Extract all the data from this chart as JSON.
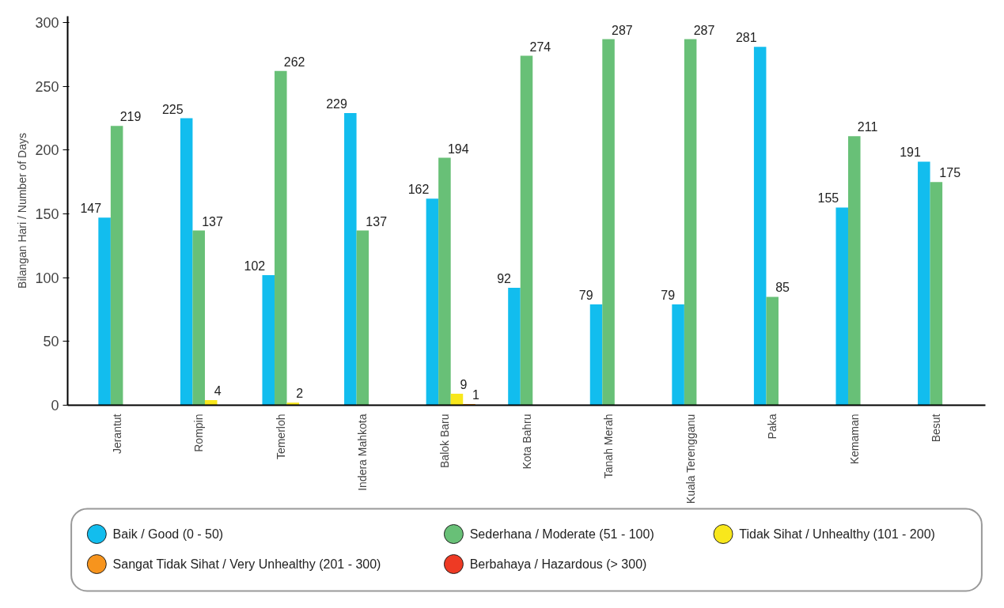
{
  "chart_data": {
    "type": "bar",
    "ylabel": "Bilangan Hari / Number of Days",
    "categories": [
      "Jerantut",
      "Rompin",
      "Temerloh",
      "Indera Mahkota",
      "Balok Baru",
      "Kota Bahru",
      "Tanah Merah",
      "Kuala Terengganu",
      "Paka",
      "Kemaman",
      "Besut"
    ],
    "series": [
      {
        "name": "Baik / Good (0 - 50)",
        "color": "#12bdee",
        "values": [
          147,
          225,
          102,
          229,
          162,
          92,
          79,
          79,
          281,
          155,
          191
        ]
      },
      {
        "name": "Sederhana / Moderate (51 - 100)",
        "color": "#68c077",
        "values": [
          219,
          137,
          262,
          137,
          194,
          274,
          287,
          287,
          85,
          211,
          175
        ]
      },
      {
        "name": "Tidak Sihat / Unhealthy (101 - 200)",
        "color": "#f8e71c",
        "values": [
          null,
          4,
          2,
          null,
          9,
          null,
          null,
          null,
          null,
          null,
          null
        ]
      },
      {
        "name": "Sangat Tidak Sihat / Very Unhealthy (201 - 300)",
        "color": "#f7941d",
        "values": [
          null,
          null,
          null,
          null,
          1,
          null,
          null,
          null,
          null,
          null,
          null
        ]
      },
      {
        "name": "Berbahaya / Hazardous (> 300)",
        "color": "#ee3a24",
        "values": [
          null,
          null,
          null,
          null,
          null,
          null,
          null,
          null,
          null,
          null,
          null
        ]
      }
    ],
    "ylim": [
      0,
      305
    ],
    "yticks": [
      0,
      50,
      100,
      150,
      200,
      250,
      300
    ],
    "data_labels": true,
    "grid": false,
    "legend": "bottom"
  }
}
